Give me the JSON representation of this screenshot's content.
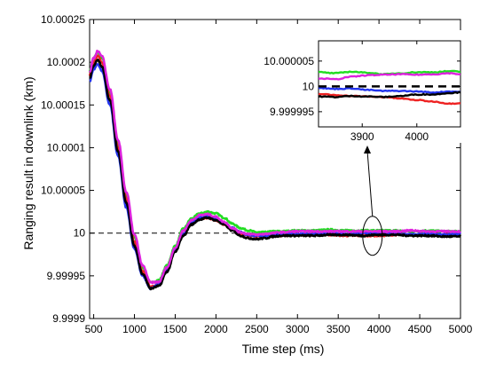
{
  "chart_data": {
    "type": "line",
    "title": "",
    "xlabel": "Time step (ms)",
    "ylabel": "Ranging result in downlink (km)",
    "xlim": [
      450,
      5000
    ],
    "ylim": [
      9.9999,
      10.00025
    ],
    "xticks": [
      500,
      1000,
      1500,
      2000,
      2500,
      3000,
      3500,
      4000,
      4500,
      5000
    ],
    "xtick_labels": [
      "500",
      "1000",
      "1500",
      "2000",
      "2500",
      "3000",
      "3500",
      "4000",
      "4500",
      "5000"
    ],
    "yticks": [
      9.9999,
      9.99995,
      10.0,
      10.00005,
      10.0001,
      10.00015,
      10.0002,
      10.00025
    ],
    "ytick_labels": [
      "9.9999",
      "9.99995",
      "10",
      "10.00005",
      "10.0001",
      "10.00015",
      "10.0002",
      "10.00025"
    ],
    "reference_line": {
      "y": 10.0,
      "style": "dashed",
      "color": "#000000"
    },
    "grid": false,
    "x": [
      450,
      500,
      550,
      600,
      700,
      800,
      900,
      1000,
      1100,
      1200,
      1300,
      1400,
      1500,
      1600,
      1700,
      1800,
      1900,
      2000,
      2100,
      2200,
      2300,
      2400,
      2500,
      2600,
      2700,
      2800,
      3000,
      3200,
      3400,
      3600,
      3800,
      4000,
      4200,
      4400,
      4600,
      4800,
      5000
    ],
    "series": [
      {
        "color": "#22dd22",
        "values": [
          10.00019,
          10.000205,
          10.000212,
          10.000205,
          10.000165,
          10.000105,
          10.000045,
          9.999995,
          9.99996,
          9.999942,
          9.999945,
          9.999962,
          9.999985,
          10.000005,
          10.000017,
          10.000023,
          10.000025,
          10.000023,
          10.000018,
          10.000011,
          10.000006,
          10.000003,
          10.000001,
          10.000001,
          10.000002,
          10.000002,
          10.000003,
          10.000003,
          10.000004,
          10.000003,
          10.000003,
          10.000003,
          10.000003,
          10.000002,
          10.000003,
          10.000002,
          10.000002
        ]
      },
      {
        "color": "#ee2222",
        "values": [
          10.000185,
          10.0002,
          10.000208,
          10.0002,
          10.00016,
          10.0001,
          10.00004,
          9.99999,
          9.999955,
          9.999937,
          9.99994,
          9.999957,
          9.99998,
          9.999998,
          10.000011,
          10.000017,
          10.000018,
          10.000015,
          10.00001,
          10.000004,
          9.999999,
          9.999997,
          9.999996,
          9.999996,
          9.999997,
          9.999997,
          9.999998,
          9.999998,
          9.999998,
          9.999997,
          9.999997,
          9.999997,
          9.999998,
          9.999998,
          9.999998,
          9.999998,
          9.999998
        ]
      },
      {
        "color": "#2233ee",
        "values": [
          10.000178,
          10.000192,
          10.000198,
          10.00019,
          10.00015,
          10.00009,
          10.00003,
          9.999982,
          9.99995,
          9.999935,
          9.99994,
          9.999957,
          9.99998,
          9.999999,
          10.000012,
          10.000018,
          10.00002,
          10.000017,
          10.000012,
          10.000006,
          10.000001,
          9.999998,
          9.999997,
          9.999997,
          9.999998,
          9.999998,
          9.999999,
          9.999999,
          9.999999,
          9.999999,
          10.0,
          10.0,
          9.999999,
          9.999998,
          9.999999,
          9.999998,
          9.999999
        ]
      },
      {
        "color": "#000000",
        "values": [
          10.000182,
          10.000196,
          10.000203,
          10.000195,
          10.000155,
          10.000095,
          10.000035,
          9.999985,
          9.999952,
          9.999935,
          9.999938,
          9.999955,
          9.999978,
          9.999997,
          10.00001,
          10.000016,
          10.000018,
          10.000015,
          10.00001,
          10.000003,
          9.999997,
          9.999994,
          9.999993,
          9.999994,
          9.999996,
          9.999997,
          9.999997,
          9.999997,
          9.999998,
          9.999998,
          9.999997,
          9.999998,
          9.999998,
          9.999997,
          9.999997,
          9.999996,
          9.999996
        ]
      },
      {
        "color": "#dd22dd",
        "values": [
          10.000188,
          10.000205,
          10.000213,
          10.000207,
          10.000168,
          10.000108,
          10.000048,
          9.999998,
          9.999962,
          9.999942,
          9.999943,
          9.99996,
          9.999983,
          10.000003,
          10.000015,
          10.000021,
          10.000022,
          10.000019,
          10.000013,
          10.000006,
          10.000001,
          9.999999,
          9.999998,
          9.999999,
          10.0,
          10.000001,
          10.000002,
          10.000002,
          10.000002,
          10.000002,
          10.000002,
          10.000002,
          10.000002,
          10.000003,
          10.000002,
          10.000002,
          10.000002
        ]
      }
    ],
    "inset": {
      "xlim": [
        3820,
        4080
      ],
      "ylim": [
        9.999992,
        10.000009
      ],
      "xticks": [
        3900,
        4000
      ],
      "xtick_labels": [
        "3900",
        "4000"
      ],
      "yticks": [
        9.999995,
        10.0,
        10.000005
      ],
      "ytick_labels": [
        "9.999995",
        "10",
        "10.000005"
      ],
      "x": [
        3820,
        3850,
        3880,
        3910,
        3940,
        3970,
        4000,
        4030,
        4060,
        4080
      ],
      "series": [
        {
          "color": "#22dd22",
          "values": [
            10.0000028,
            10.0000026,
            10.0000029,
            10.0000027,
            10.0000024,
            10.0000026,
            10.0000028,
            10.0000028,
            10.000003,
            10.0000029
          ]
        },
        {
          "color": "#ee2222",
          "values": [
            9.9999985,
            9.9999983,
            9.9999981,
            9.999998,
            9.9999979,
            9.9999976,
            9.9999973,
            9.999997,
            9.9999966,
            9.9999967
          ]
        },
        {
          "color": "#2233ee",
          "values": [
            9.9999997,
            9.9999995,
            9.9999996,
            9.9999993,
            9.9999991,
            9.9999991,
            9.999999,
            9.9999988,
            9.999999,
            9.9999989
          ]
        },
        {
          "color": "#000000",
          "values": [
            9.999998,
            9.9999979,
            9.9999981,
            9.999998,
            9.9999979,
            9.9999981,
            9.9999984,
            9.9999984,
            9.9999987,
            9.9999988
          ]
        },
        {
          "color": "#dd22dd",
          "values": [
            10.0000016,
            10.0000014,
            10.0000019,
            10.0000022,
            10.0000023,
            10.0000024,
            10.0000023,
            10.0000024,
            10.0000026,
            10.0000024
          ]
        }
      ],
      "reference_line": {
        "y": 10.0,
        "style": "dashed",
        "color": "#000000"
      }
    },
    "annotation": {
      "type": "ellipse-with-arrow",
      "target": "inset"
    }
  }
}
